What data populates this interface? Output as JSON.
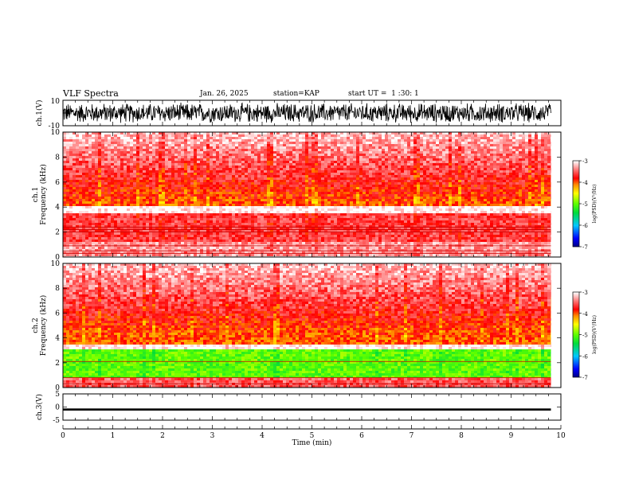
{
  "header": {
    "title": "VLF Spectra",
    "date": "Jan. 26, 2025",
    "station": "station=KAP",
    "start": "start UT =  1 :30: 1"
  },
  "chart_data": [
    {
      "type": "line",
      "id": "ch1-waveform",
      "ylabel": "ch.1(V)",
      "ylim": [
        -10,
        10
      ],
      "y_ticks": [
        "10",
        "-10"
      ],
      "xlim": [
        0,
        10
      ],
      "note_series": "dense oscillating waveform, roughly -8 V to +8 V, spanning 0-9.8 min"
    },
    {
      "type": "heatmap",
      "id": "ch1-spectrogram",
      "ylabel": "ch.1\nFrequency (kHz)",
      "ylabel_line1": "ch.1",
      "ylabel_line2": "Frequency (kHz)",
      "ylim": [
        0,
        10
      ],
      "y_ticks": [
        "0",
        "2",
        "4",
        "6",
        "8",
        "10"
      ],
      "xlim": [
        0,
        10
      ],
      "data_extent_x": [
        0,
        9.8
      ],
      "colorbar": {
        "label": "log(PSD)(V²/Hz)",
        "range": [
          -7,
          -3
        ],
        "ticks": [
          "-3",
          "-4",
          "-5",
          "-6",
          "-7"
        ]
      },
      "bands": [
        {
          "f_range": [
            4.0,
            10.0
          ],
          "level": -4.0
        },
        {
          "f_range": [
            1.2,
            3.5
          ],
          "level": -3.6
        },
        {
          "f_range": [
            0.0,
            1.2
          ],
          "level": -3.3
        }
      ],
      "lines_khz": [
        2.0,
        2.2,
        2.4,
        0.9,
        0.5,
        0.3
      ]
    },
    {
      "type": "heatmap",
      "id": "ch2-spectrogram",
      "ylabel": "ch.2\nFrequency (kHz)",
      "ylabel_line1": "ch.2",
      "ylabel_line2": "Frequency (kHz)",
      "ylim": [
        0,
        10
      ],
      "y_ticks": [
        "0",
        "2",
        "4",
        "6",
        "8",
        "10"
      ],
      "xlim": [
        0,
        10
      ],
      "data_extent_x": [
        0,
        9.8
      ],
      "colorbar": {
        "label": "log(PSD)(V²/Hz)",
        "range": [
          -7,
          -3
        ],
        "ticks": [
          "-3",
          "-4",
          "-5",
          "-6",
          "-7"
        ]
      },
      "bands": [
        {
          "f_range": [
            3.5,
            10.0
          ],
          "level": -4.0
        },
        {
          "f_range": [
            0.8,
            3.0
          ],
          "level": -5.0
        },
        {
          "f_range": [
            0.0,
            0.8
          ],
          "level": -3.5
        }
      ],
      "lines_khz": [
        2.1,
        0.8,
        0.3
      ]
    },
    {
      "type": "line",
      "id": "ch3-waveform",
      "ylabel": "ch.3(V)",
      "ylim": [
        -5,
        5
      ],
      "y_ticks": [
        "5",
        "0",
        "-5"
      ],
      "xlim": [
        0,
        10
      ],
      "x_ticks": [
        "0",
        "1",
        "2",
        "3",
        "4",
        "5",
        "6",
        "7",
        "8",
        "9",
        "10"
      ],
      "xlabel": "Time (min)",
      "note_series": "near-constant band around -1 V spanning 0-9.8 min"
    }
  ]
}
